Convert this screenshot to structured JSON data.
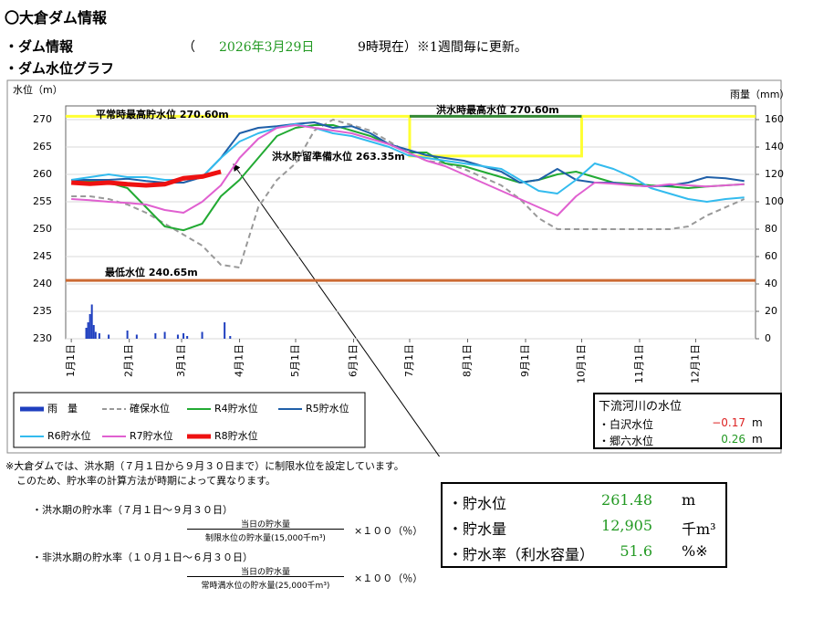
{
  "header": {
    "title": "〇大倉ダム情報",
    "info_label": "・ダム情報",
    "open_paren": "（",
    "date": "2026年3月29日",
    "time_note": "9時現在）※1週間毎に更新。",
    "graph_label": "・ダム水位グラフ"
  },
  "chart_data": {
    "type": "line",
    "y_label": "水位（m）",
    "y2_label": "雨量（mm）",
    "xlim": [
      -3,
      366
    ],
    "xticks": [
      {
        "value": 0,
        "label": "1月1日"
      },
      {
        "value": 31,
        "label": "2月1日"
      },
      {
        "value": 59,
        "label": "3月1日"
      },
      {
        "value": 90,
        "label": "4月1日"
      },
      {
        "value": 120,
        "label": "5月1日"
      },
      {
        "value": 151,
        "label": "6月1日"
      },
      {
        "value": 181,
        "label": "7月1日"
      },
      {
        "value": 212,
        "label": "8月1日"
      },
      {
        "value": 243,
        "label": "9月1日"
      },
      {
        "value": 273,
        "label": "10月1日"
      },
      {
        "value": 304,
        "label": "11月1日"
      },
      {
        "value": 334,
        "label": "12月1日"
      }
    ],
    "ylim": [
      230,
      272.5
    ],
    "yticks": [
      230,
      235,
      240,
      245,
      250,
      255,
      260,
      265,
      270
    ],
    "y2lim": [
      0,
      170
    ],
    "y2ticks": [
      0,
      20,
      40,
      60,
      80,
      100,
      120,
      140,
      160
    ],
    "grid": true,
    "x": [
      0,
      10,
      20,
      30,
      40,
      50,
      60,
      70,
      80,
      90,
      100,
      110,
      120,
      130,
      140,
      150,
      160,
      170,
      180,
      190,
      200,
      210,
      220,
      230,
      240,
      250,
      260,
      270,
      280,
      290,
      300,
      310,
      320,
      330,
      340,
      350,
      360
    ],
    "series": [
      {
        "name": "雨　量",
        "type": "bar",
        "axis": "y2",
        "color": "#1f3fbf",
        "x": [
          8,
          9,
          10,
          11,
          12,
          13,
          15,
          20,
          30,
          35,
          45,
          50,
          57,
          60,
          62,
          70,
          82,
          85
        ],
        "values": [
          8,
          12,
          18,
          25,
          10,
          5,
          4,
          3,
          6,
          3,
          4,
          5,
          3,
          4,
          2,
          5,
          12,
          2
        ]
      },
      {
        "name": "確保水位",
        "color": "#999999",
        "dash": true,
        "line_width": 2,
        "values": [
          256,
          256,
          255.5,
          254.5,
          253,
          251,
          249,
          247,
          243.5,
          243,
          254,
          259,
          262,
          268,
          270,
          269,
          268,
          266,
          264,
          262.5,
          262,
          261,
          259.5,
          258,
          255.5,
          252,
          250,
          250,
          250,
          250,
          250,
          250,
          250,
          250.5,
          252.5,
          254,
          255.5
        ]
      },
      {
        "name": "R4貯水位",
        "color": "#22aa33",
        "line_width": 2,
        "values": [
          259,
          258.8,
          258.5,
          257.5,
          254,
          250.5,
          249.8,
          251,
          256,
          259,
          263,
          267,
          268.5,
          269,
          269,
          268,
          267,
          265.5,
          264,
          264,
          262,
          261.5,
          260.5,
          259.5,
          258.5,
          259,
          260,
          260.5,
          259.5,
          258.5,
          258.3,
          258,
          257.8,
          257.5,
          257.8,
          258,
          258.2
        ]
      },
      {
        "name": "R5貯水位",
        "color": "#1f5fa8",
        "line_width": 2,
        "values": [
          259,
          259,
          259,
          259.2,
          258.8,
          258.5,
          258.5,
          259.5,
          263,
          267.5,
          268.5,
          268.8,
          269.2,
          269.5,
          268.5,
          268.8,
          267.5,
          265.5,
          264.5,
          263.5,
          263,
          262.5,
          261.5,
          260.5,
          258.5,
          259,
          261,
          259,
          258.5,
          258.5,
          258,
          257.8,
          258,
          258.5,
          259.5,
          259.3,
          258.8
        ]
      },
      {
        "name": "R6貯水位",
        "color": "#33bbee",
        "line_width": 2,
        "values": [
          259,
          259.5,
          260,
          259.5,
          259.5,
          259,
          259,
          259.5,
          263,
          266,
          267.5,
          268.5,
          269.2,
          268.5,
          267.5,
          267,
          266,
          265,
          263.5,
          263,
          262.5,
          262,
          261.5,
          261,
          259,
          257,
          256.5,
          259,
          262,
          261,
          259.5,
          257.5,
          256.5,
          255.5,
          255,
          255.5,
          255.8
        ]
      },
      {
        "name": "R7貯水位",
        "color": "#e060d0",
        "line_width": 2,
        "values": [
          255.5,
          255.3,
          255,
          254.8,
          254.5,
          253.5,
          253,
          255,
          258,
          263,
          266.5,
          268.5,
          269,
          268.5,
          268,
          267.5,
          266.5,
          265.5,
          264,
          262.5,
          261.5,
          260,
          258.5,
          257,
          255.5,
          254,
          252.5,
          256,
          258.5,
          258.3,
          258,
          257.8,
          258.2,
          258,
          257.8,
          258,
          258.2
        ]
      },
      {
        "name": "R8貯水位",
        "color": "#ee1111",
        "line_width": 5,
        "values": [
          258.5,
          258.3,
          258.5,
          258.2,
          258,
          258.2,
          259.3,
          259.6,
          260.5,
          null,
          null,
          null,
          null,
          null,
          null,
          null,
          null,
          null,
          null,
          null,
          null,
          null,
          null,
          null,
          null,
          null,
          null,
          null,
          null,
          null,
          null,
          null,
          null,
          null,
          null,
          null,
          null
        ]
      }
    ],
    "reference_lines": [
      {
        "label": "平常時最高貯水位 270.60m",
        "color": "#ffff33",
        "x": [
          -3,
          181,
          181,
          273,
          273,
          366
        ],
        "values": [
          270.6,
          270.6,
          263.35,
          263.35,
          270.6,
          270.6
        ]
      },
      {
        "label": "洪水時最高水位 270.60m",
        "color": "#338833",
        "x": [
          181,
          273
        ],
        "values": [
          270.6,
          270.6
        ]
      },
      {
        "label": "最低水位 240.65m",
        "color": "#cc6a33",
        "x": [
          -3,
          366
        ],
        "values": [
          240.65,
          240.65
        ]
      }
    ],
    "annotations": [
      "洪水貯留準備水位 263.35m"
    ]
  },
  "river_levels": {
    "title": "下流河川の水位",
    "rows": [
      {
        "label": "・白沢水位",
        "value": "−0.17",
        "unit": "m",
        "color": "#dd2222"
      },
      {
        "label": "・郷六水位",
        "value": "0.26",
        "unit": "m",
        "color": "#229922"
      }
    ]
  },
  "storage": {
    "rows": [
      {
        "label": "・貯水位",
        "value": "261.48",
        "unit": "m"
      },
      {
        "label": "・貯水量",
        "value": "12,905",
        "unit": "千m³"
      },
      {
        "label": "・貯水率（利水容量）",
        "value": "51.6",
        "unit": "%※"
      }
    ],
    "color": "#229922"
  },
  "notes": [
    "※大倉ダムでは、洪水期（７月１日から９月３０日まで）に制限水位を設定しています。",
    "このため、貯水率の計算方法が時期によって異なります。"
  ],
  "formulas": [
    {
      "title": "・洪水期の貯水率（７月１日～９月３０日）",
      "numerator": "当日の貯水量",
      "denominator": "制限水位の貯水量(15,000千m³)",
      "multiplier": "×１００（％）"
    },
    {
      "title": "・非洪水期の貯水率（１０月１日～６月３０日）",
      "numerator": "当日の貯水量",
      "denominator": "常時満水位の貯水量(25,000千m³)",
      "multiplier": "×１００（％）"
    }
  ]
}
